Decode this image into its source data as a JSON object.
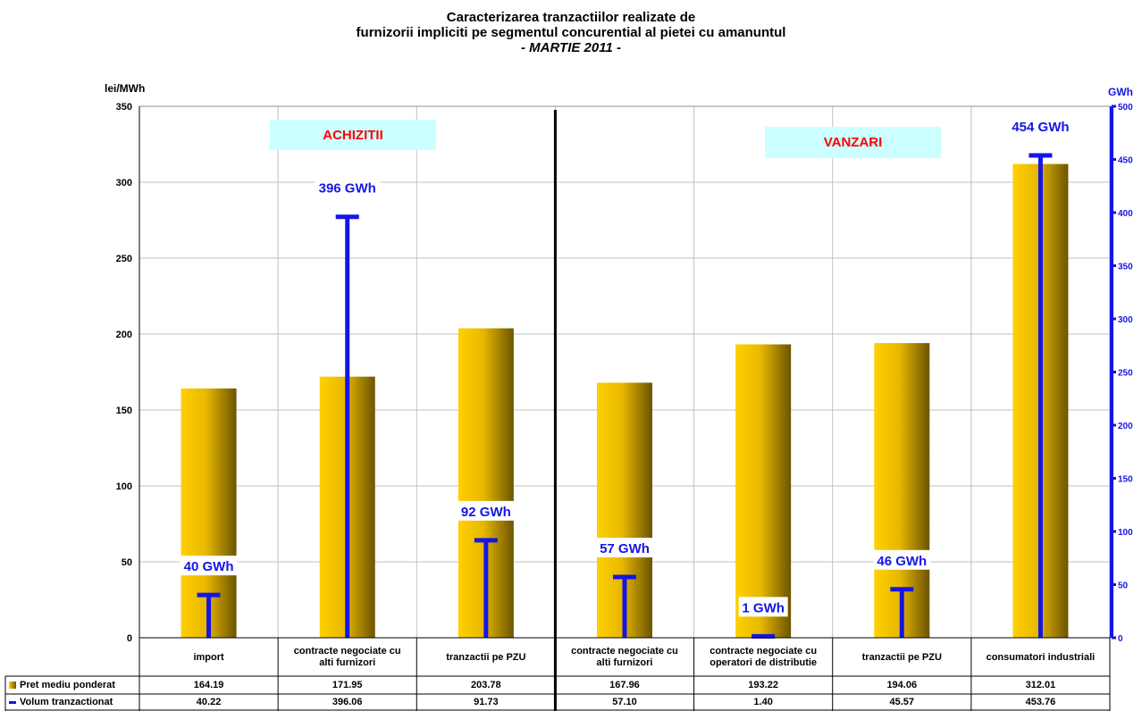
{
  "chart_data": {
    "type": "bar",
    "title": "Caracterizarea tranzactiilor realizate de",
    "subtitle": "furnizorii impliciti pe segmentul concurential al pietei cu amanuntul",
    "period": "- MARTIE 2011 -",
    "ylabel": "lei/MWh",
    "y2label": "GWh",
    "ylim": [
      0,
      350
    ],
    "y2lim": [
      0,
      500
    ],
    "yticks": [
      "0",
      "50",
      "100",
      "150",
      "200",
      "250",
      "300",
      "350"
    ],
    "y2ticks": [
      "0",
      "50",
      "100",
      "150",
      "200",
      "250",
      "300",
      "350",
      "400",
      "450",
      "500"
    ],
    "grid": true,
    "sections": [
      "ACHIZITII",
      "VANZARI"
    ],
    "categories": [
      [
        "import"
      ],
      [
        "contracte negociate cu",
        "alti furnizori"
      ],
      [
        "tranzactii pe PZU"
      ],
      [
        "contracte negociate cu",
        "alti furnizori"
      ],
      [
        "contracte negociate cu",
        "operatori de distributie"
      ],
      [
        "tranzactii pe PZU"
      ],
      [
        "consumatori industriali"
      ]
    ],
    "series": [
      {
        "name": "Pret mediu ponderat",
        "kind": "bar",
        "axis": "left",
        "values": [
          164.19,
          171.95,
          203.78,
          167.96,
          193.22,
          194.06,
          312.01
        ],
        "labels": [
          "164.19",
          "171.95",
          "203.78",
          "167.96",
          "193.22",
          "194.06",
          "312.01"
        ]
      },
      {
        "name": "Volum tranzactionat",
        "kind": "line-marker",
        "axis": "right",
        "values": [
          40.22,
          396.06,
          91.73,
          57.1,
          1.4,
          45.57,
          453.76
        ],
        "labels": [
          "40.22",
          "396.06",
          "91.73",
          "57.10",
          "1.40",
          "45.57",
          "453.76"
        ],
        "data_labels": [
          "40 GWh",
          "396 GWh",
          "92 GWh",
          "57 GWh",
          "1 GWh",
          "46 GWh",
          "454 GWh"
        ]
      }
    ],
    "colors": {
      "bar_light": "#ffd000",
      "bar_dark": "#6b5400",
      "volume": "#1515e6",
      "section_bg": "#ccffff",
      "section_text": "#ff0000",
      "grid": "#c0c0c0"
    }
  }
}
